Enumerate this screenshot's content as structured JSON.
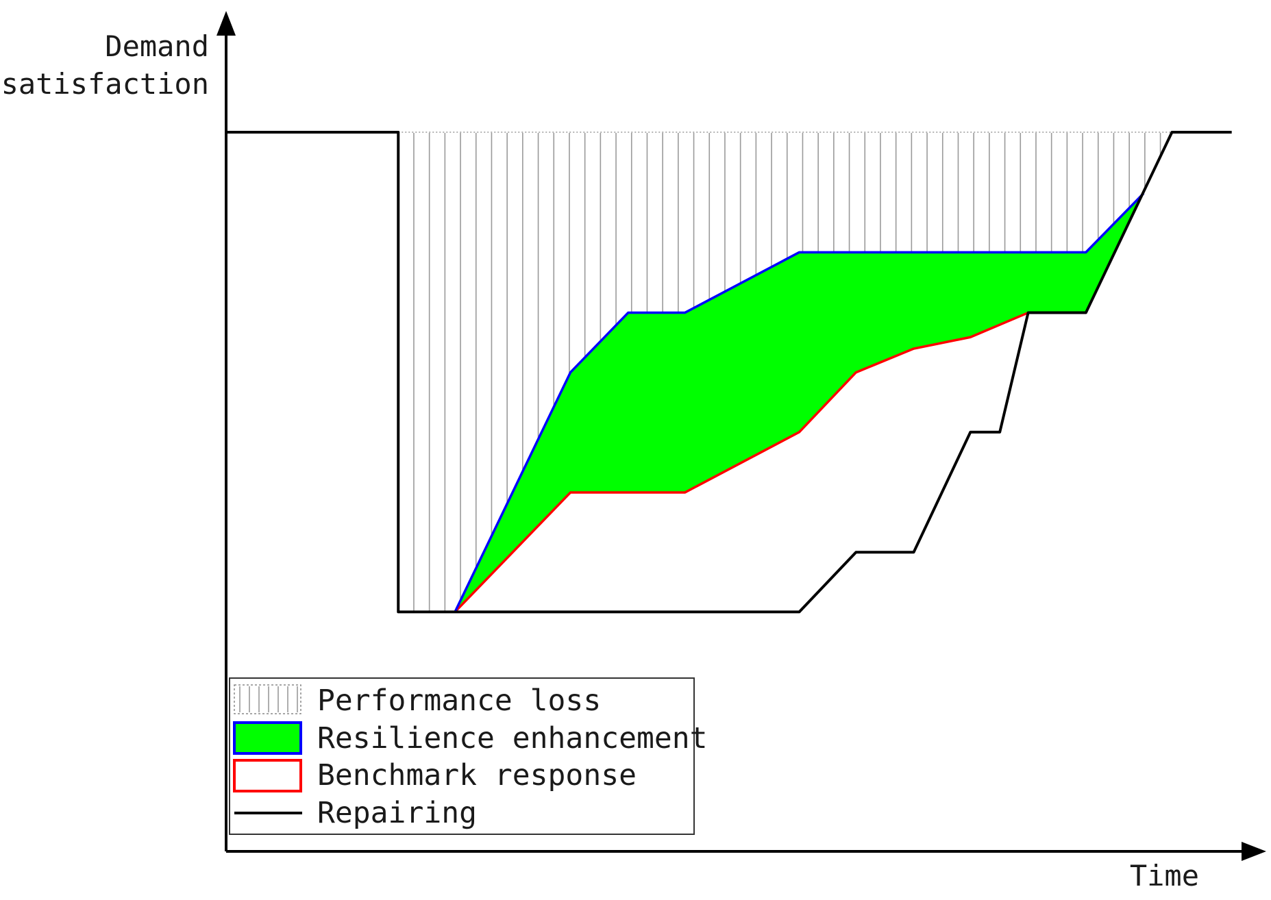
{
  "chart_data": {
    "type": "area",
    "xlabel": "Time",
    "ylabel_lines": [
      "Demand",
      "satisfaction"
    ],
    "xlim": [
      0,
      1
    ],
    "ylim": [
      0,
      1
    ],
    "grid": false,
    "legend_position": "bottom-left",
    "legend": [
      {
        "label": "Performance loss",
        "style": "hatch"
      },
      {
        "label": "Resilience enhancement",
        "style": "fill",
        "fill": "#00ff00",
        "stroke": "#0000ff"
      },
      {
        "label": "Benchmark response",
        "style": "outline",
        "stroke": "#ff0000"
      },
      {
        "label": "Repairing",
        "style": "line",
        "stroke": "#000000"
      }
    ],
    "nominal": 1.0,
    "series": [
      {
        "name": "Repairing",
        "color": "#000000",
        "points": [
          [
            0,
            1
          ],
          [
            0.17,
            1
          ],
          [
            0.17,
            0.333
          ],
          [
            0.566,
            0.333
          ],
          [
            0.622,
            0.416
          ],
          [
            0.679,
            0.416
          ],
          [
            0.735,
            0.583
          ],
          [
            0.764,
            0.583
          ],
          [
            0.792,
            0.749
          ],
          [
            0.849,
            0.749
          ],
          [
            0.934,
            1
          ],
          [
            0.993,
            1
          ]
        ]
      },
      {
        "name": "Benchmark response",
        "color": "#ff0000",
        "points": [
          [
            0.226,
            0.333
          ],
          [
            0.34,
            0.499
          ],
          [
            0.453,
            0.499
          ],
          [
            0.566,
            0.583
          ],
          [
            0.622,
            0.666
          ],
          [
            0.679,
            0.699
          ],
          [
            0.735,
            0.715
          ],
          [
            0.792,
            0.749
          ]
        ]
      },
      {
        "name": "Resilience enhancement",
        "color": "#0000ff",
        "points": [
          [
            0.226,
            0.333
          ],
          [
            0.34,
            0.666
          ],
          [
            0.397,
            0.749
          ],
          [
            0.453,
            0.749
          ],
          [
            0.566,
            0.833
          ],
          [
            0.849,
            0.833
          ],
          [
            0.906,
            0.915
          ]
        ]
      }
    ]
  }
}
